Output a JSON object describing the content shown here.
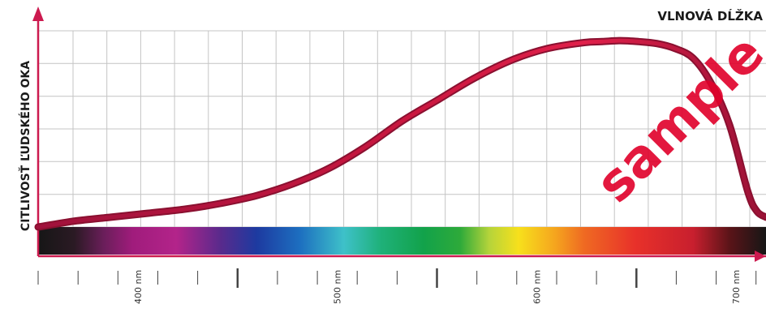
{
  "chart_data": {
    "type": "line",
    "xlabel": "VLNOVÁ DĹŽKA",
    "ylabel": "CITLIVOSŤ ĽUDSKÉHO OKA",
    "xlim": [
      350,
      750
    ],
    "ylim": [
      0,
      1
    ],
    "grid": true,
    "x_unit": "nm",
    "x_ticks_labeled": [
      400,
      500,
      600,
      700
    ],
    "x_ticks_minor": [
      350,
      360,
      370,
      380,
      390,
      410,
      420,
      430,
      440,
      450,
      460,
      470,
      480,
      490,
      510,
      520,
      530,
      540,
      550,
      560,
      570,
      580,
      590,
      610,
      620,
      630,
      640,
      650,
      660,
      670,
      680,
      690,
      710,
      720,
      730,
      740,
      750
    ],
    "x_ticks_major": [
      450,
      550,
      650
    ],
    "tick_labels": [
      "400 nm",
      "500 nm",
      "600 nm",
      "700 nm"
    ],
    "series": [
      {
        "color": "#c8173f",
        "x": [
          350,
          370,
          390,
          410,
          430,
          450,
          470,
          490,
          510,
          530,
          550,
          570,
          590,
          610,
          630,
          650,
          660,
          670,
          680,
          690,
          700,
          710,
          720,
          730,
          740,
          745,
          750
        ],
        "y": [
          0.0,
          0.03,
          0.05,
          0.07,
          0.09,
          0.12,
          0.16,
          0.22,
          0.3,
          0.41,
          0.54,
          0.65,
          0.76,
          0.85,
          0.91,
          0.94,
          0.945,
          0.95,
          0.945,
          0.935,
          0.91,
          0.86,
          0.73,
          0.52,
          0.18,
          0.08,
          0.05
        ]
      }
    ]
  },
  "watermark_text": "sample",
  "colors": {
    "curve": "#c8173f",
    "curve_dark": "#8a1030",
    "axis": "#cc1a4f",
    "grid": "#c4c4c4"
  }
}
